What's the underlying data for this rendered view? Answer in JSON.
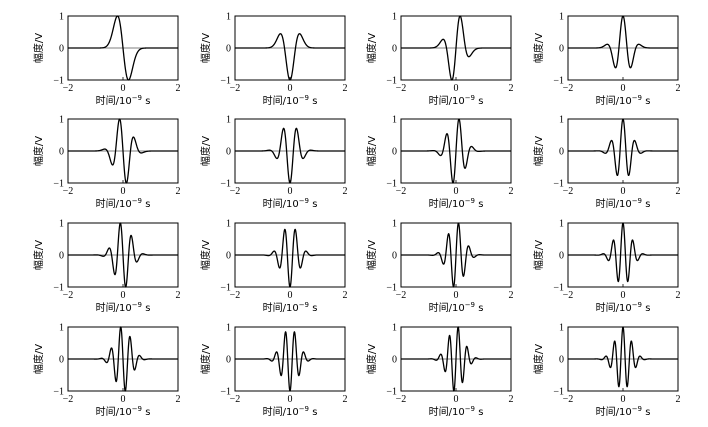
{
  "chart_data": {
    "type": "line",
    "layout": {
      "rows": 4,
      "cols": 4
    },
    "xlabel": "时间/10",
    "xlabel_exp": "−9",
    "xlabel_unit": " s",
    "ylabel": "幅度/V",
    "xlim": [
      -2,
      2
    ],
    "ylim": [
      -1,
      1
    ],
    "xticks": [
      -2,
      0,
      2
    ],
    "xtick_labels": [
      "−2",
      "0",
      "2"
    ],
    "yticks": [
      -1,
      0,
      1
    ],
    "ytick_labels": [
      "−1",
      "0",
      "1"
    ],
    "sigma": 0.2,
    "panels": [
      {
        "order": 1,
        "polarity": 1
      },
      {
        "order": 2,
        "polarity": 1
      },
      {
        "order": 3,
        "polarity": 1
      },
      {
        "order": 4,
        "polarity": 1
      },
      {
        "order": 5,
        "polarity": 1
      },
      {
        "order": 6,
        "polarity": 1
      },
      {
        "order": 7,
        "polarity": 1
      },
      {
        "order": 8,
        "polarity": 1
      },
      {
        "order": 9,
        "polarity": 1
      },
      {
        "order": 10,
        "polarity": 1
      },
      {
        "order": 11,
        "polarity": 1
      },
      {
        "order": 12,
        "polarity": 1
      },
      {
        "order": 13,
        "polarity": 1
      },
      {
        "order": 14,
        "polarity": 1
      },
      {
        "order": 15,
        "polarity": 1
      },
      {
        "order": 16,
        "polarity": 1
      }
    ]
  }
}
